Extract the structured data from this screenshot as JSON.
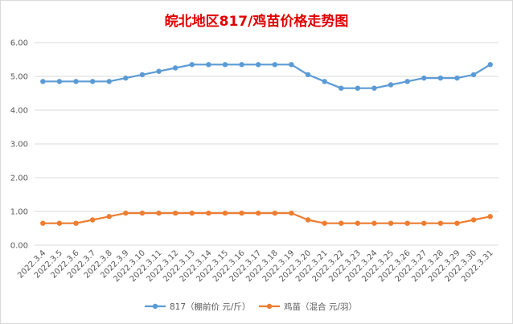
{
  "chart_data": {
    "type": "line",
    "title": "皖北地区817/鸡苗价格走势图",
    "categories": [
      "2022.3.4",
      "2022.3.5",
      "2022.3.6",
      "2022.3.7",
      "2022.3.8",
      "2022.3.9",
      "2022.3.10",
      "2022.3.11",
      "2022.3.12",
      "2022.3.13",
      "2022.3.14",
      "2022.3.15",
      "2022.3.16",
      "2022.3.17",
      "2022.3.18",
      "2022.3.19",
      "2022.3.20",
      "2022.3.21",
      "2022.3.22",
      "2022.3.23",
      "2022.3.24",
      "2022.3.25",
      "2022.3.26",
      "2022.3.27",
      "2022.3.28",
      "2022.3.29",
      "2022.3.30",
      "2022.3.31"
    ],
    "series": [
      {
        "name": "817（棚前价 元/斤）",
        "color": "#5b9bd5",
        "values": [
          4.85,
          4.85,
          4.85,
          4.85,
          4.85,
          4.95,
          5.05,
          5.15,
          5.25,
          5.35,
          5.35,
          5.35,
          5.35,
          5.35,
          5.35,
          5.35,
          5.05,
          4.85,
          4.65,
          4.65,
          4.65,
          4.75,
          4.85,
          4.95,
          4.95,
          4.95,
          5.05,
          5.35
        ]
      },
      {
        "name": "鸡苗（混合 元/羽）",
        "color": "#ed7d31",
        "values": [
          0.65,
          0.65,
          0.65,
          0.75,
          0.85,
          0.95,
          0.95,
          0.95,
          0.95,
          0.95,
          0.95,
          0.95,
          0.95,
          0.95,
          0.95,
          0.95,
          0.75,
          0.65,
          0.65,
          0.65,
          0.65,
          0.65,
          0.65,
          0.65,
          0.65,
          0.65,
          0.75,
          0.85
        ]
      }
    ],
    "y_ticks": [
      "0.00",
      "1.00",
      "2.00",
      "3.00",
      "4.00",
      "5.00",
      "6.00"
    ],
    "ylim": [
      0,
      6
    ],
    "grid": true,
    "legend_position": "bottom"
  }
}
